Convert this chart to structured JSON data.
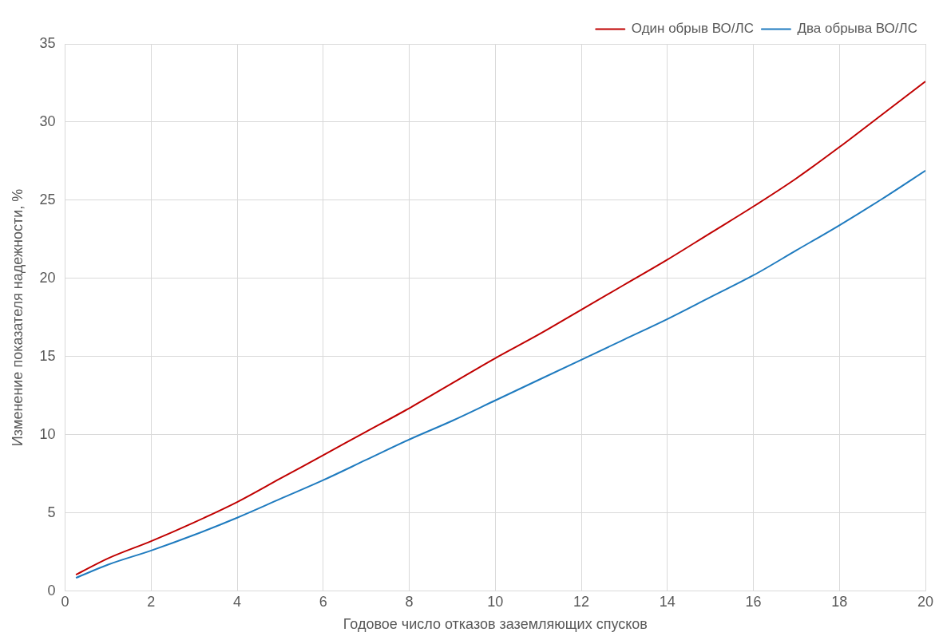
{
  "chart_data": {
    "type": "line",
    "xlabel": "Годовое число отказов заземляющих спусков",
    "ylabel": "Изменение показателя надежности, %",
    "x": [
      0.25,
      1,
      2,
      3,
      4,
      5,
      6,
      7,
      8,
      9,
      10,
      11,
      12,
      13,
      14,
      15,
      16,
      17,
      18,
      19,
      20
    ],
    "series": [
      {
        "name": "Один обрыв ВО/ЛС",
        "color": "#c00000",
        "values": [
          1.05,
          2.1,
          3.2,
          4.4,
          5.7,
          7.2,
          8.7,
          10.2,
          11.7,
          13.3,
          14.9,
          16.4,
          18.0,
          19.6,
          21.2,
          22.9,
          24.6,
          26.4,
          28.4,
          30.5,
          32.6
        ]
      },
      {
        "name": "Два обрыва ВО/ЛС",
        "color": "#1f7bbf",
        "values": [
          0.85,
          1.7,
          2.6,
          3.6,
          4.7,
          5.9,
          7.1,
          8.4,
          9.7,
          10.9,
          12.2,
          13.5,
          14.8,
          16.1,
          17.4,
          18.8,
          20.2,
          21.8,
          23.4,
          25.1,
          26.9
        ]
      }
    ],
    "xlim": [
      0,
      20
    ],
    "xticks": [
      0,
      2,
      4,
      6,
      8,
      10,
      12,
      14,
      16,
      18,
      20
    ],
    "ylim": [
      0,
      35
    ],
    "yticks": [
      0,
      5,
      10,
      15,
      20,
      25,
      30,
      35
    ],
    "grid": true,
    "legend": "top right",
    "marker": "none",
    "line_style": "solid"
  }
}
